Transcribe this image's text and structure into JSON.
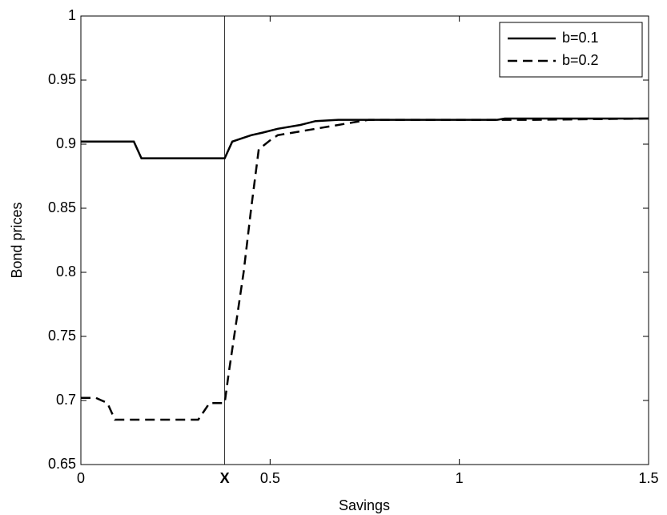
{
  "chart_data": {
    "type": "line",
    "xlabel": "Savings",
    "ylabel": "Bond prices",
    "xlim": [
      0,
      1.5
    ],
    "ylim": [
      0.65,
      1
    ],
    "xticks": [
      0,
      {
        "value": 0.38,
        "label": "X"
      },
      0.5,
      1,
      1.5
    ],
    "yticks": [
      0.65,
      0.7,
      0.75,
      0.8,
      0.85,
      0.9,
      0.95,
      1
    ],
    "legend": "upper-right",
    "series": [
      {
        "name": "b=0.1",
        "color": "#000000",
        "dash": "solid",
        "x": [
          0,
          0.14,
          0.16,
          0.38,
          0.4,
          0.42,
          0.45,
          0.48,
          0.52,
          0.58,
          0.62,
          0.68,
          1.1,
          1.12,
          1.5
        ],
        "values": [
          0.902,
          0.902,
          0.889,
          0.889,
          0.902,
          0.904,
          0.907,
          0.909,
          0.912,
          0.915,
          0.918,
          0.919,
          0.919,
          0.92,
          0.92
        ]
      },
      {
        "name": "b=0.2",
        "color": "#000000",
        "dash": "dashed",
        "x": [
          0,
          0.04,
          0.07,
          0.09,
          0.31,
          0.34,
          0.38,
          0.39,
          0.41,
          0.43,
          0.45,
          0.47,
          0.5,
          0.52,
          0.58,
          0.64,
          0.7,
          0.76,
          1.2,
          1.5
        ],
        "values": [
          0.702,
          0.702,
          0.698,
          0.685,
          0.685,
          0.698,
          0.698,
          0.72,
          0.76,
          0.8,
          0.85,
          0.896,
          0.903,
          0.907,
          0.91,
          0.913,
          0.916,
          0.919,
          0.919,
          0.92
        ]
      }
    ]
  }
}
